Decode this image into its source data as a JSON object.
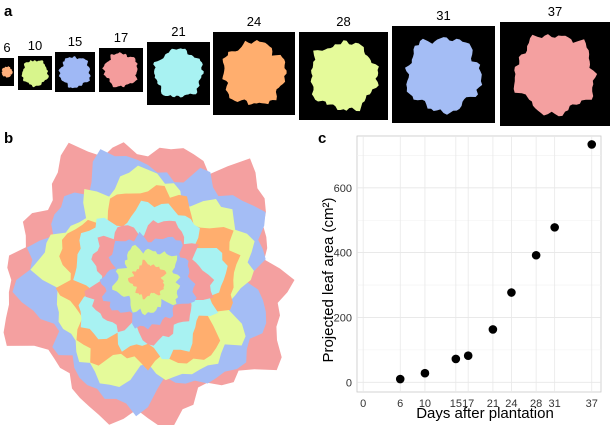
{
  "panels": {
    "a": "a",
    "b": "b",
    "c": "c"
  },
  "thumbnails": [
    {
      "day": "6",
      "color": "#ffb07c"
    },
    {
      "day": "10",
      "color": "#d8f58c"
    },
    {
      "day": "15",
      "color": "#9fb8f5"
    },
    {
      "day": "17",
      "color": "#f49c9c"
    },
    {
      "day": "21",
      "color": "#a8f2f2"
    },
    {
      "day": "24",
      "color": "#ffae6e"
    },
    {
      "day": "28",
      "color": "#e5fa9a"
    },
    {
      "day": "31",
      "color": "#a4bdf5"
    },
    {
      "day": "37",
      "color": "#f4a0a0"
    }
  ],
  "rosette_colors": [
    "#f4a0a0",
    "#a4bdf5",
    "#e5fa9a",
    "#ffae6e",
    "#a8f2f2",
    "#f49c9c",
    "#9fb8f5",
    "#d8f58c",
    "#ffb07c"
  ],
  "chart_data": {
    "type": "scatter",
    "title": "",
    "xlabel": "Days after plantation",
    "ylabel": "Projected leaf area (cm²)",
    "x": [
      6,
      10,
      15,
      17,
      21,
      24,
      28,
      31,
      37
    ],
    "y": [
      10,
      28,
      72,
      82,
      163,
      277,
      392,
      478,
      734
    ],
    "xticks": [
      0,
      6,
      10,
      15,
      17,
      21,
      24,
      28,
      31,
      37
    ],
    "xtick_labels": [
      "0",
      "6",
      "10",
      "15",
      "17",
      "21",
      "24",
      "28",
      "31",
      "37"
    ],
    "yticks": [
      0,
      200,
      400,
      600
    ],
    "xlim": [
      -1,
      38.5
    ],
    "ylim": [
      -30,
      760
    ],
    "grid": true,
    "point_color": "#000000"
  }
}
